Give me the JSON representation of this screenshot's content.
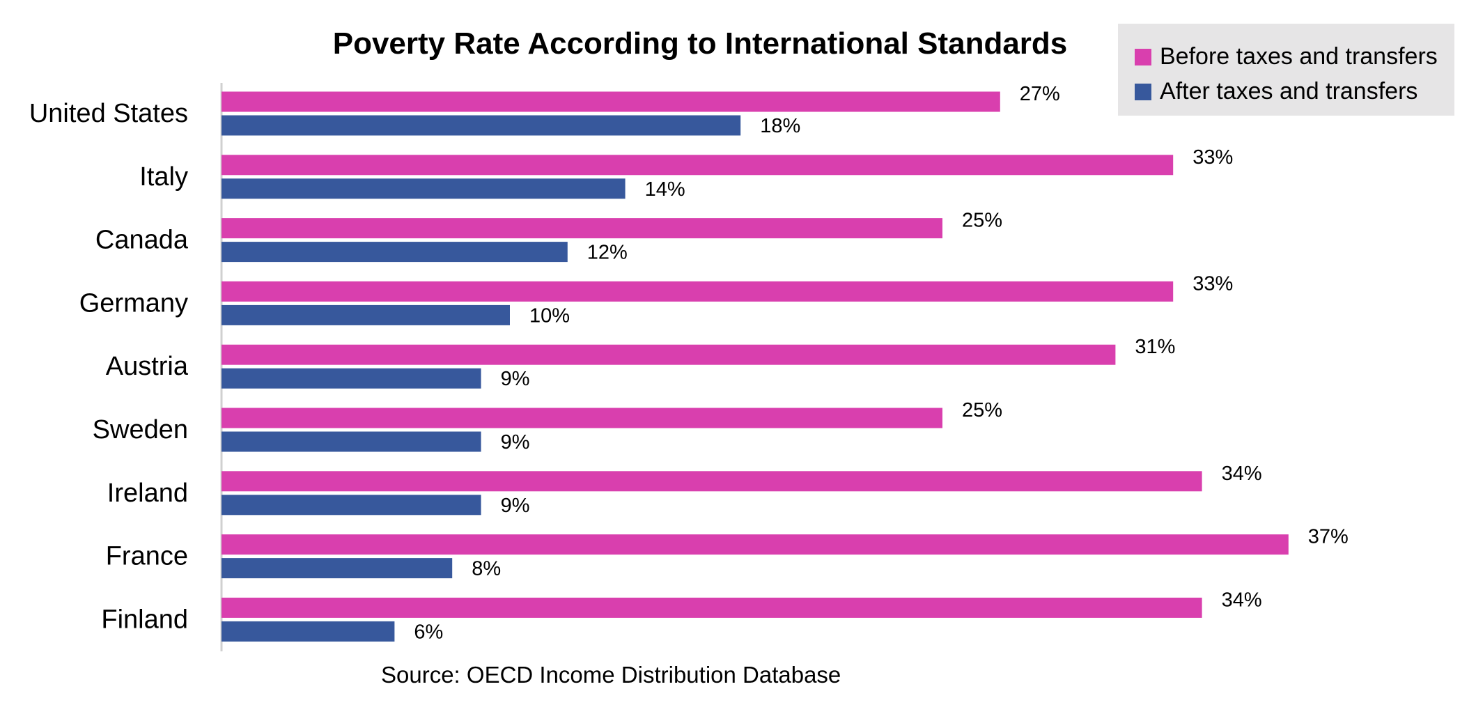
{
  "chart_data": {
    "type": "bar",
    "orientation": "horizontal",
    "title": "Poverty Rate According to International Standards",
    "source": "Source:  OECD Income Distribution Database",
    "categories": [
      "United States",
      "Italy",
      "Canada",
      "Germany",
      "Austria",
      "Sweden",
      "Ireland",
      "France",
      "Finland"
    ],
    "series": [
      {
        "name": "Before taxes and transfers",
        "color": "#d93fae",
        "values": [
          27,
          33,
          25,
          33,
          31,
          25,
          34,
          37,
          34
        ]
      },
      {
        "name": "After taxes and transfers",
        "color": "#37589c",
        "values": [
          18,
          14,
          12,
          10,
          9,
          9,
          9,
          8,
          6
        ]
      }
    ],
    "value_suffix": "%",
    "xlim": [
      0,
      40
    ],
    "grid": false,
    "legend_position": "top-right",
    "data_labels": true
  }
}
